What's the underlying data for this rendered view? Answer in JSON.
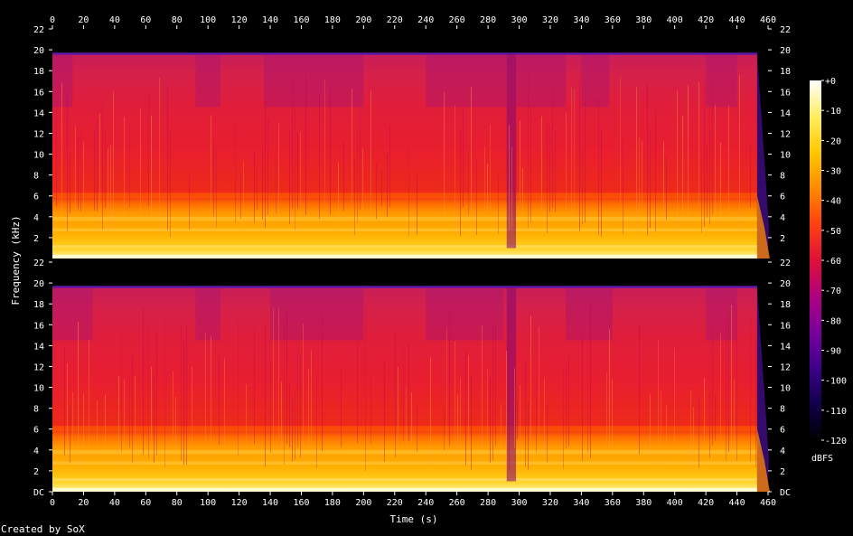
{
  "chart_data": {
    "type": "heatmap",
    "title": "",
    "xlabel": "Time (s)",
    "ylabel": "Frequency (kHz)",
    "x_range": [
      0,
      460
    ],
    "x_ticks": [
      "0",
      "20",
      "40",
      "60",
      "80",
      "100",
      "120",
      "140",
      "160",
      "180",
      "200",
      "220",
      "240",
      "260",
      "280",
      "300",
      "320",
      "340",
      "360",
      "380",
      "400",
      "420",
      "440",
      "460"
    ],
    "y_range_khz": [
      0,
      22
    ],
    "y_ticks": [
      "DC",
      "2",
      "4",
      "6",
      "8",
      "10",
      "12",
      "14",
      "16",
      "18",
      "20",
      "22"
    ],
    "channels": [
      {
        "quiet_segments_s": [
          [
            0,
            13
          ],
          [
            92,
            108
          ],
          [
            136,
            200
          ],
          [
            240,
            292
          ],
          [
            298,
            330
          ],
          [
            340,
            358
          ],
          [
            420,
            440
          ]
        ],
        "spectral_dips_s": [
          [
            292,
            298
          ]
        ]
      },
      {
        "quiet_segments_s": [
          [
            0,
            26
          ],
          [
            92,
            108
          ],
          [
            140,
            200
          ],
          [
            240,
            290
          ],
          [
            330,
            360
          ],
          [
            420,
            440
          ]
        ],
        "spectral_dips_s": [
          [
            292,
            298
          ]
        ]
      }
    ],
    "content_cutoff_khz": 19.6,
    "signal_end_s": 453,
    "audio_end_s": 460,
    "colorbar": {
      "label": "dBFS",
      "min": -120,
      "max": 0,
      "ticks": [
        "+0",
        "-10",
        "-20",
        "-30",
        "-40",
        "-50",
        "-60",
        "-70",
        "-80",
        "-90",
        "-100",
        "-110",
        "-120"
      ]
    },
    "colormap": [
      "#000000",
      "#10004a",
      "#3c008a",
      "#7a009e",
      "#b10080",
      "#e0103a",
      "#ff4010",
      "#ff8a00",
      "#ffc800",
      "#ffee60",
      "#ffffff"
    ]
  },
  "credit": "Created by SoX"
}
